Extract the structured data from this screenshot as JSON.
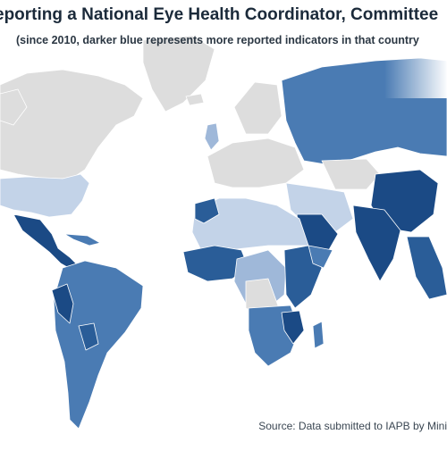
{
  "title": "eporting a National Eye Health Coordinator, Committee",
  "subtitle": "(since 2010, darker blue represents more reported indicators in that country",
  "source": "Source: Data submitted to IAPB by Minis",
  "colors": {
    "no_data": "#dddddd",
    "level_1": "#c3d3e8",
    "level_2": "#9fb8d9",
    "level_3": "#4a7bb3",
    "level_4": "#2a5d98",
    "level_5": "#1b4a85",
    "background": "#ffffff"
  }
}
